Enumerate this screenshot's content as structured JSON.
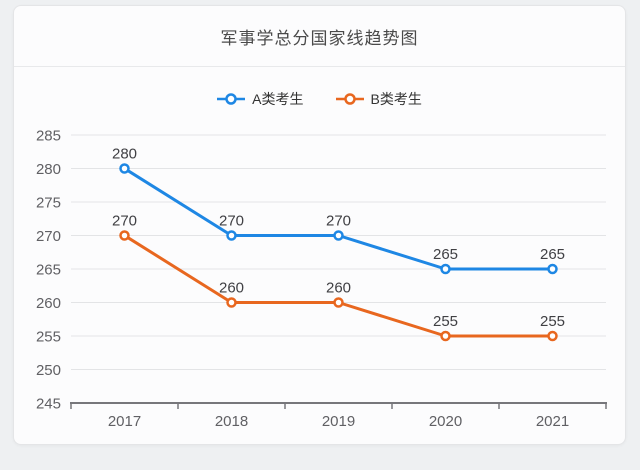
{
  "chart_data": {
    "type": "line",
    "title": "军事学总分国家线趋势图",
    "categories": [
      "2017",
      "2018",
      "2019",
      "2020",
      "2021"
    ],
    "series": [
      {
        "name": "A类考生",
        "color": "#1E87E4",
        "values": [
          280,
          270,
          270,
          265,
          265
        ]
      },
      {
        "name": "B类考生",
        "color": "#E8671F",
        "values": [
          270,
          260,
          260,
          255,
          255
        ]
      }
    ],
    "xlabel": "",
    "ylabel": "",
    "ylim": [
      245,
      285
    ],
    "ytick_step": 5,
    "grid": true,
    "legend_position": "top",
    "point_labels": true,
    "marker": "hollow-circle"
  },
  "colors": {
    "page_background": "#eef0f2",
    "card_background": "#fcfcfd",
    "card_border": "#e4e5e7",
    "divider": "#e8e9eb",
    "gridline": "#e3e4e6",
    "axis_line": "#77777b",
    "title_text": "#4a4a4a",
    "axis_label_text": "#606064",
    "data_label_text": "#404044",
    "legend_text": "#333333",
    "series_a": "#1E87E4",
    "series_b": "#E8671F"
  }
}
